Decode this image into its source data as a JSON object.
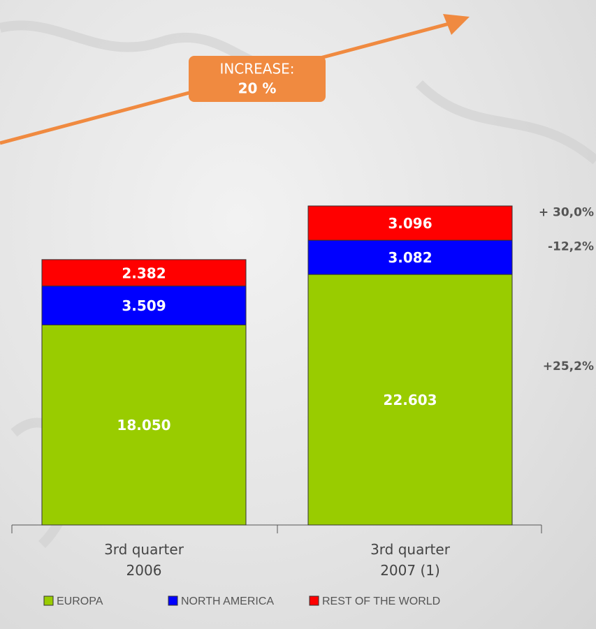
{
  "chart_data": {
    "type": "stacked_bar",
    "categories": [
      "3rd quarter 2006",
      "3rd quarter 2007 (1)"
    ],
    "series": [
      {
        "name": "EUROPA",
        "color": "#99cc00",
        "values": [
          18050,
          22603
        ],
        "value_labels": [
          "18.050",
          "22.603"
        ]
      },
      {
        "name": "NORTH AMERICA",
        "color": "#0000ff",
        "values": [
          3509,
          3082
        ],
        "value_labels": [
          "3.509",
          "3.082"
        ]
      },
      {
        "name": "REST OF THE WORLD",
        "color": "#ff0000",
        "values": [
          2382,
          3096
        ],
        "value_labels": [
          "2.382",
          "3.096"
        ]
      }
    ],
    "annotations": [
      "+25,2%",
      "-12,2%",
      "+ 30,0%"
    ],
    "increase": {
      "label": "INCREASE:",
      "value": "20 %"
    }
  }
}
